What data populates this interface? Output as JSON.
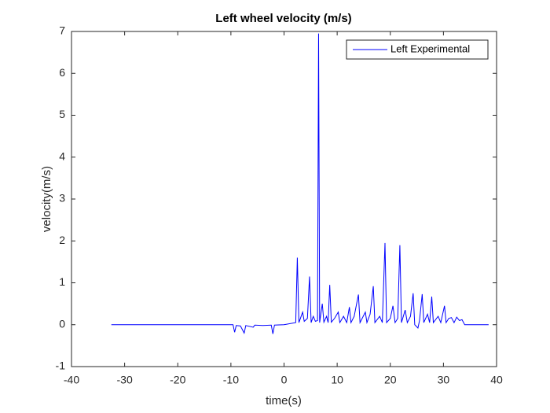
{
  "chart_data": {
    "type": "line",
    "title": "Left wheel velocity (m/s)",
    "xlabel": "time(s)",
    "ylabel": "velocity(m/s)",
    "x": [
      -32.5,
      -9.6,
      -9.3,
      -9.0,
      -8.2,
      -7.5,
      -7.2,
      -5.8,
      -5.5,
      -4,
      -2.4,
      -2.1,
      -1.8,
      0,
      2.2,
      2.5,
      2.8,
      3.5,
      3.8,
      4.4,
      4.8,
      5.1,
      5.5,
      5.9,
      6.3,
      6.5,
      6.7,
      7.2,
      7.5,
      8.0,
      8.3,
      8.6,
      8.9,
      9.5,
      10.2,
      10.5,
      11.2,
      11.8,
      12.3,
      12.6,
      13.2,
      14.0,
      14.3,
      15.3,
      15.6,
      16.2,
      16.8,
      17.1,
      18,
      18.5,
      19,
      19.3,
      20,
      20.5,
      20.9,
      21.4,
      21.8,
      22.1,
      22.8,
      23.2,
      23.8,
      24.3,
      24.6,
      25.2,
      25.5,
      26,
      26.3,
      27,
      27.4,
      27.8,
      28.1,
      29,
      29.5,
      30.2,
      30.5,
      31,
      31.5,
      32,
      32.5,
      33,
      33.5,
      34,
      38.5
    ],
    "series": [
      {
        "name": "Left Experimental",
        "color": "#0000ff",
        "values": [
          0,
          0,
          -0.18,
          -0.02,
          -0.03,
          -0.2,
          -0.02,
          -0.06,
          -0.01,
          -0.02,
          -0.01,
          -0.22,
          -0.01,
          0,
          0.05,
          1.6,
          0.05,
          0.3,
          0.08,
          0.15,
          1.15,
          0.05,
          0.2,
          0.08,
          0.1,
          6.95,
          0.05,
          0.5,
          0.06,
          0.2,
          0.05,
          0.95,
          0.06,
          0.15,
          0.3,
          0.05,
          0.2,
          0.05,
          0.42,
          0.05,
          0.2,
          0.72,
          0.05,
          0.3,
          0.05,
          0.25,
          0.92,
          0.05,
          0.2,
          0.05,
          1.95,
          0.05,
          0.15,
          0.45,
          0.05,
          0.15,
          1.9,
          0.05,
          0.35,
          0.05,
          0.2,
          0.75,
          0,
          -0.08,
          0.1,
          0.73,
          0.05,
          0.25,
          0.05,
          0.67,
          0.05,
          0.2,
          0.05,
          0.45,
          0.05,
          0.15,
          0.17,
          0.05,
          0.18,
          0.1,
          0.12,
          0,
          0
        ]
      }
    ],
    "xlim": [
      -40,
      40
    ],
    "xticks": [
      -40,
      -30,
      -20,
      -10,
      0,
      10,
      20,
      30,
      40
    ],
    "ylim": [
      -1,
      7
    ],
    "yticks": [
      -1,
      0,
      1,
      2,
      3,
      4,
      5,
      6,
      7
    ],
    "legend": "northeast"
  }
}
